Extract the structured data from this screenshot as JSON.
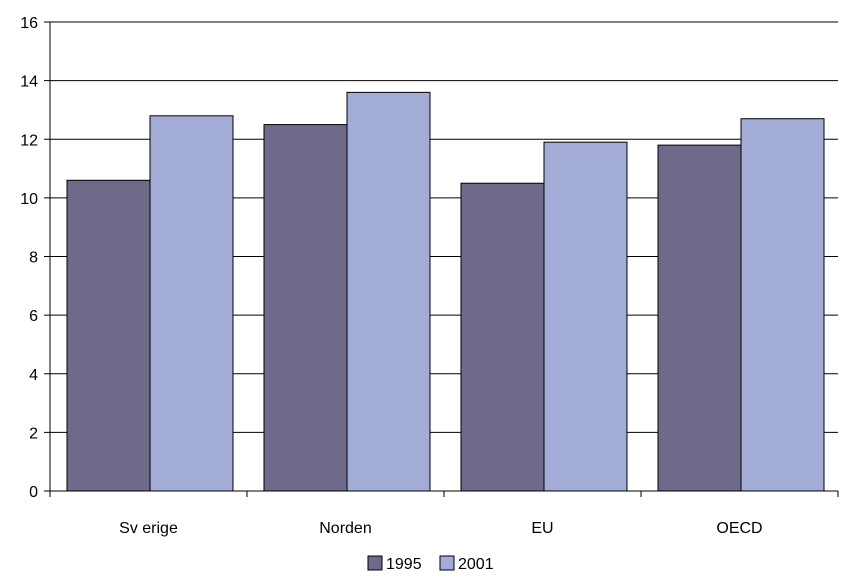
{
  "chart_data": {
    "type": "bar",
    "categories": [
      "Sv erige",
      "Norden",
      "EU",
      "OECD"
    ],
    "series": [
      {
        "name": "1995",
        "values": [
          10.6,
          12.5,
          10.5,
          11.8
        ],
        "color": "#6d6a8a"
      },
      {
        "name": "2001",
        "values": [
          12.8,
          13.6,
          11.9,
          12.7
        ],
        "color": "#a2acd6"
      }
    ],
    "ylim": [
      0,
      16
    ],
    "yticks": [
      "0",
      "2",
      "4",
      "6",
      "8",
      "10",
      "12",
      "14",
      "16"
    ],
    "grid": true,
    "legend": "bottom-center"
  }
}
